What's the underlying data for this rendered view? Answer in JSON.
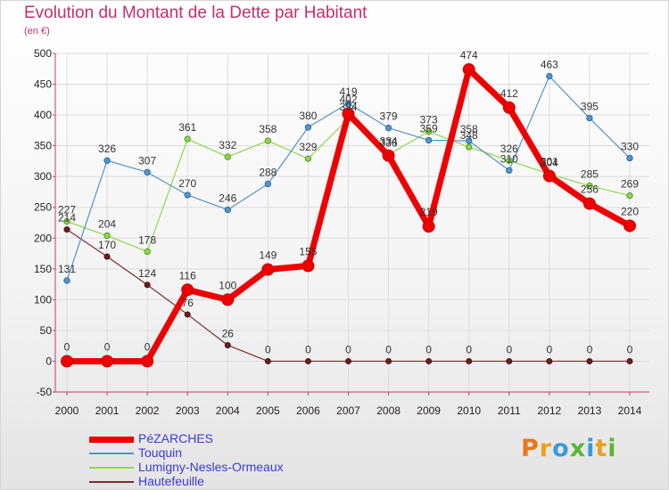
{
  "title": "Evolution du Montant de la Dette par Habitant",
  "unit_label": "(en €)",
  "brand": {
    "text": "Proxiti",
    "letter_colors": [
      "#e8771c",
      "#f0a01e",
      "#3b9ad9",
      "#5cb532",
      "#3b9ad9",
      "#e8a020",
      "#5cb532"
    ]
  },
  "chart_data": {
    "type": "line",
    "title": "Evolution du Montant de la Dette par Habitant",
    "ylabel": "(en €)",
    "x": [
      "2000",
      "2001",
      "2002",
      "2003",
      "2004",
      "2005",
      "2006",
      "2007",
      "2008",
      "2009",
      "2010",
      "2011",
      "2012",
      "2013",
      "2014"
    ],
    "ylim": [
      -50,
      500
    ],
    "yticks": [
      -50,
      0,
      50,
      100,
      150,
      200,
      250,
      300,
      350,
      400,
      450,
      500
    ],
    "grid": true,
    "legend_position": "bottom-left",
    "series": [
      {
        "name": "Hautefeuille",
        "color": "#7a2e2e",
        "values": [
          214,
          170,
          124,
          76,
          26,
          0,
          0,
          0,
          0,
          0,
          0,
          0,
          0,
          0,
          0
        ]
      },
      {
        "name": "Lumigny-Nesles-Ormeaux",
        "color": "#8fd64e",
        "values": [
          227,
          204,
          178,
          361,
          332,
          358,
          329,
          394,
          336,
          373,
          348,
          326,
          304,
          285,
          269
        ]
      },
      {
        "name": "Touquin",
        "color": "#5593c8",
        "values": [
          131,
          326,
          307,
          270,
          246,
          288,
          380,
          419,
          379,
          359,
          358,
          310,
          463,
          395,
          330
        ]
      },
      {
        "name": "PéZARCHES",
        "color": "#ee0000",
        "values": [
          0,
          0,
          0,
          116,
          100,
          149,
          155,
          402,
          334,
          219,
          474,
          412,
          301,
          256,
          220
        ]
      }
    ],
    "legend_order": [
      "PéZARCHES",
      "Touquin",
      "Lumigny-Nesles-Ormeaux",
      "Hautefeuille"
    ]
  }
}
